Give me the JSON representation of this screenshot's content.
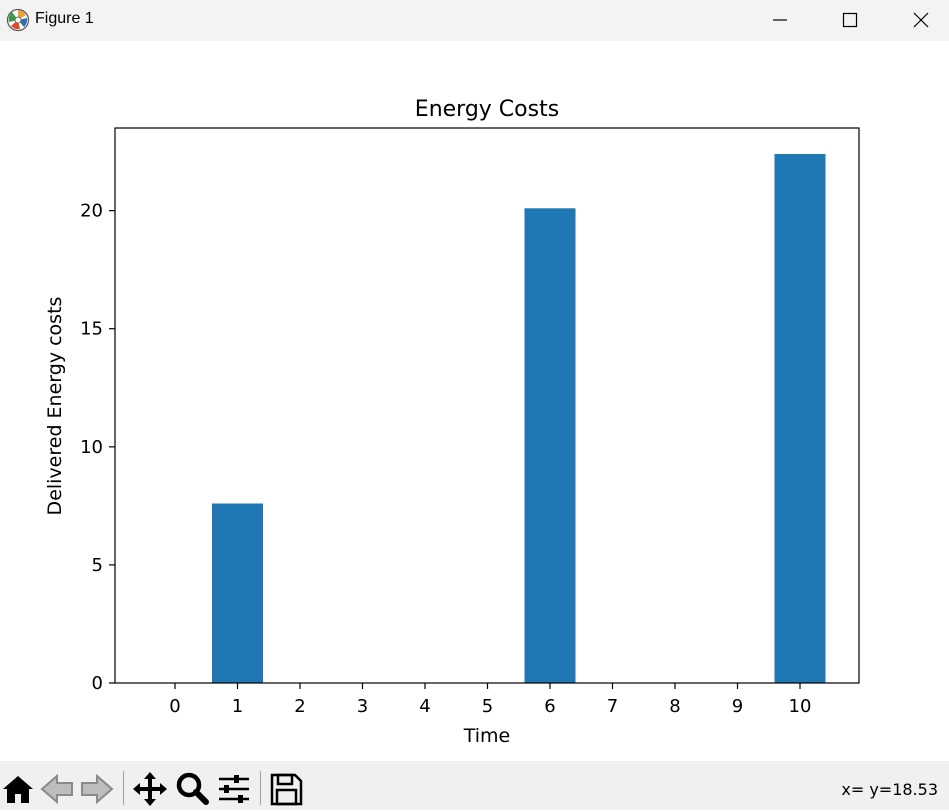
{
  "window": {
    "title": "Figure 1",
    "controls": [
      "minimize-icon",
      "maximize-icon",
      "close-icon"
    ]
  },
  "toolbar": {
    "buttons": [
      "home-icon",
      "back-icon",
      "forward-icon",
      "pan-icon",
      "zoom-icon",
      "configure-subplots-icon",
      "save-icon"
    ],
    "coordinates": "x= y=18.53"
  },
  "chart_data": {
    "type": "bar",
    "title": "Energy Costs",
    "xlabel": "Time",
    "ylabel": "Delivered Energy costs",
    "categories": [
      0,
      1,
      2,
      3,
      4,
      5,
      6,
      7,
      8,
      9,
      10
    ],
    "values": [
      0,
      7.6,
      0,
      0,
      0,
      0,
      20.1,
      0,
      0,
      0,
      22.4
    ],
    "xticks": [
      "0",
      "1",
      "2",
      "3",
      "4",
      "5",
      "6",
      "7",
      "8",
      "9",
      "10"
    ],
    "yticks": [
      0,
      5,
      10,
      15,
      20
    ],
    "ylim": [
      0,
      23.5
    ],
    "bar_color": "#1f77b4",
    "grid": false,
    "legend": false
  }
}
